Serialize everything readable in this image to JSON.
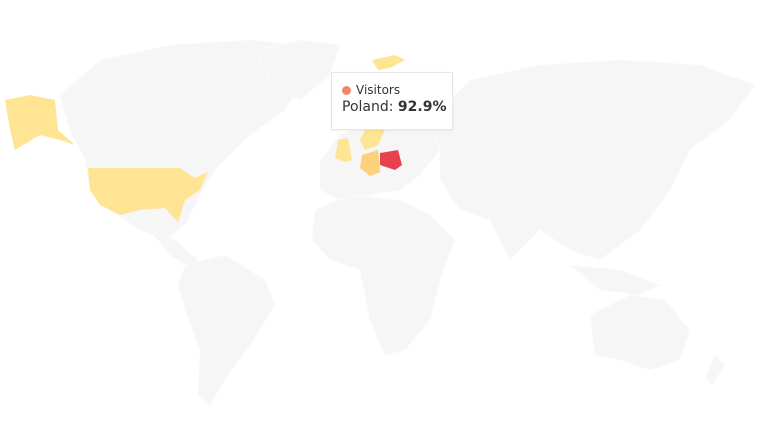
{
  "map": {
    "series_name": "Visitors",
    "colors": {
      "land": "#f6f6f6",
      "low": "#ffe494",
      "mid": "#ffd07a",
      "high": "#e8404f",
      "series_dot": "#f0876a"
    },
    "highlighted_countries": [
      {
        "name": "United States",
        "level": "low"
      },
      {
        "name": "United Kingdom",
        "level": "low"
      },
      {
        "name": "Norway",
        "level": "low"
      },
      {
        "name": "Sweden",
        "level": "low"
      },
      {
        "name": "Germany",
        "level": "mid"
      },
      {
        "name": "Poland",
        "level": "high"
      }
    ]
  },
  "tooltip": {
    "series": "Visitors",
    "country": "Poland",
    "separator": ":",
    "value": "92.9%"
  }
}
